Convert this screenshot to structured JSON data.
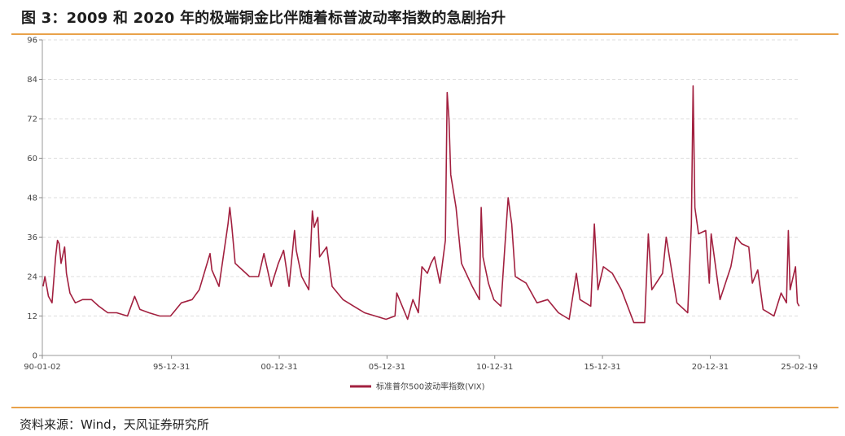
{
  "figure": {
    "title": "图 3：2009 和 2020 年的极端铜金比伴随着标普波动率指数的急剧抬升",
    "source": "资料来源：Wind，天风证券研究所"
  },
  "colors": {
    "series": "#a2203f",
    "rule": "#e9a24a",
    "grid": "#dddddd"
  },
  "chart_data": {
    "type": "line",
    "series": [
      {
        "name": "标准普尔500波动率指数(VIX)",
        "points": [
          [
            "1990-01",
            21
          ],
          [
            "1990-02",
            24
          ],
          [
            "1990-04",
            18
          ],
          [
            "1990-06",
            16
          ],
          [
            "1990-08",
            30
          ],
          [
            "1990-09",
            35
          ],
          [
            "1990-10",
            34
          ],
          [
            "1990-11",
            28
          ],
          [
            "1991-01",
            33
          ],
          [
            "1991-02",
            25
          ],
          [
            "1991-04",
            19
          ],
          [
            "1991-07",
            16
          ],
          [
            "1991-11",
            17
          ],
          [
            "1992-04",
            17
          ],
          [
            "1992-08",
            15
          ],
          [
            "1993-01",
            13
          ],
          [
            "1993-06",
            13
          ],
          [
            "1993-12",
            12
          ],
          [
            "1994-04",
            18
          ],
          [
            "1994-07",
            14
          ],
          [
            "1994-12",
            13
          ],
          [
            "1995-06",
            12
          ],
          [
            "1995-12",
            12
          ],
          [
            "1996-06",
            16
          ],
          [
            "1996-12",
            17
          ],
          [
            "1997-04",
            20
          ],
          [
            "1997-10",
            31
          ],
          [
            "1997-11",
            26
          ],
          [
            "1998-03",
            21
          ],
          [
            "1998-08",
            40
          ],
          [
            "1998-09",
            45
          ],
          [
            "1998-10",
            40
          ],
          [
            "1998-12",
            28
          ],
          [
            "1999-04",
            26
          ],
          [
            "1999-08",
            24
          ],
          [
            "2000-01",
            24
          ],
          [
            "2000-04",
            31
          ],
          [
            "2000-08",
            21
          ],
          [
            "2000-12",
            28
          ],
          [
            "2001-03",
            32
          ],
          [
            "2001-06",
            21
          ],
          [
            "2001-09",
            38
          ],
          [
            "2001-10",
            32
          ],
          [
            "2002-01",
            24
          ],
          [
            "2002-05",
            20
          ],
          [
            "2002-07",
            44
          ],
          [
            "2002-08",
            39
          ],
          [
            "2002-10",
            42
          ],
          [
            "2002-11",
            30
          ],
          [
            "2003-03",
            33
          ],
          [
            "2003-06",
            21
          ],
          [
            "2003-12",
            17
          ],
          [
            "2004-06",
            15
          ],
          [
            "2004-12",
            13
          ],
          [
            "2005-06",
            12
          ],
          [
            "2005-12",
            11
          ],
          [
            "2006-05",
            12
          ],
          [
            "2006-06",
            19
          ],
          [
            "2006-12",
            11
          ],
          [
            "2007-03",
            17
          ],
          [
            "2007-06",
            13
          ],
          [
            "2007-08",
            27
          ],
          [
            "2007-11",
            25
          ],
          [
            "2008-01",
            28
          ],
          [
            "2008-03",
            30
          ],
          [
            "2008-06",
            22
          ],
          [
            "2008-09",
            35
          ],
          [
            "2008-10",
            80
          ],
          [
            "2008-11",
            72
          ],
          [
            "2008-12",
            55
          ],
          [
            "2009-03",
            45
          ],
          [
            "2009-06",
            28
          ],
          [
            "2009-12",
            21
          ],
          [
            "2010-04",
            17
          ],
          [
            "2010-05",
            45
          ],
          [
            "2010-06",
            30
          ],
          [
            "2010-09",
            22
          ],
          [
            "2010-12",
            17
          ],
          [
            "2011-04",
            15
          ],
          [
            "2011-08",
            48
          ],
          [
            "2011-10",
            40
          ],
          [
            "2011-12",
            24
          ],
          [
            "2012-06",
            22
          ],
          [
            "2012-12",
            16
          ],
          [
            "2013-06",
            17
          ],
          [
            "2013-12",
            13
          ],
          [
            "2014-06",
            11
          ],
          [
            "2014-10",
            25
          ],
          [
            "2014-12",
            17
          ],
          [
            "2015-06",
            15
          ],
          [
            "2015-08",
            40
          ],
          [
            "2015-10",
            20
          ],
          [
            "2016-01",
            27
          ],
          [
            "2016-06",
            25
          ],
          [
            "2016-11",
            20
          ],
          [
            "2017-06",
            10
          ],
          [
            "2017-12",
            10
          ],
          [
            "2018-02",
            37
          ],
          [
            "2018-04",
            20
          ],
          [
            "2018-10",
            25
          ],
          [
            "2018-12",
            36
          ],
          [
            "2019-06",
            16
          ],
          [
            "2019-12",
            13
          ],
          [
            "2020-02",
            40
          ],
          [
            "2020-03",
            82
          ],
          [
            "2020-04",
            45
          ],
          [
            "2020-06",
            37
          ],
          [
            "2020-10",
            38
          ],
          [
            "2020-12",
            22
          ],
          [
            "2021-01",
            37
          ],
          [
            "2021-06",
            17
          ],
          [
            "2021-12",
            27
          ],
          [
            "2022-03",
            36
          ],
          [
            "2022-06",
            34
          ],
          [
            "2022-10",
            33
          ],
          [
            "2022-12",
            22
          ],
          [
            "2023-03",
            26
          ],
          [
            "2023-06",
            14
          ],
          [
            "2023-12",
            12
          ],
          [
            "2024-04",
            19
          ],
          [
            "2024-07",
            16
          ],
          [
            "2024-08",
            38
          ],
          [
            "2024-09",
            20
          ],
          [
            "2024-12",
            27
          ],
          [
            "2025-01",
            16
          ],
          [
            "2025-02",
            15
          ]
        ]
      }
    ],
    "y_ticks": [
      0,
      12,
      24,
      36,
      48,
      60,
      72,
      84,
      96
    ],
    "ylim": [
      0,
      96
    ],
    "x_ticks": [
      "90-01-02",
      "95-12-31",
      "00-12-31",
      "05-12-31",
      "10-12-31",
      "15-12-31",
      "20-12-31",
      "25-02-19"
    ],
    "xlim": [
      "1990-01-02",
      "2025-02-19"
    ],
    "grid": "horizontal dashed",
    "legend_position": "bottom-center"
  }
}
